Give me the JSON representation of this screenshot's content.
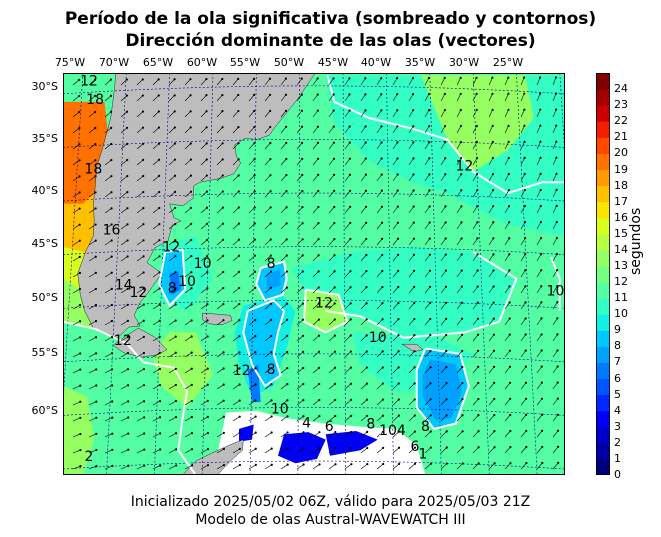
{
  "chart_data": {
    "type": "heatmap",
    "title": "Período de la ola significativa (sombreado y contornos)",
    "subtitle": "Dirección dominante de las olas (vectores)",
    "x_ticks": [
      "75°W",
      "70°W",
      "65°W",
      "60°W",
      "55°W",
      "50°W",
      "45°W",
      "40°W",
      "35°W",
      "30°W",
      "25°W"
    ],
    "y_ticks": [
      "30°S",
      "35°S",
      "40°S",
      "45°S",
      "50°S",
      "55°S",
      "60°S"
    ],
    "colorbar": {
      "label": "segundos",
      "min": 0,
      "max": 25,
      "ticks": [
        "0",
        "1",
        "2",
        "3",
        "4",
        "5",
        "6",
        "7",
        "8",
        "9",
        "10",
        "11",
        "12",
        "13",
        "14",
        "15",
        "16",
        "17",
        "18",
        "19",
        "20",
        "21",
        "22",
        "23",
        "24"
      ],
      "colors": [
        "#00007f",
        "#0000a4",
        "#0000cc",
        "#0000f5",
        "#0028ff",
        "#0054ff",
        "#0078ff",
        "#00a0ff",
        "#00c8ff",
        "#12f0e4",
        "#33ffc4",
        "#54ffa3",
        "#75ff82",
        "#96ff61",
        "#b7ff40",
        "#d8ff1f",
        "#fae500",
        "#ffc000",
        "#ff9a00",
        "#ff7200",
        "#ff4800",
        "#f51d00",
        "#cc0000",
        "#a40000",
        "#7f0000"
      ]
    },
    "contour_labels": [
      {
        "text": "12",
        "lon": -74.3,
        "lat": -29.6
      },
      {
        "text": "18",
        "lon": -73.6,
        "lat": -31.3
      },
      {
        "text": "18",
        "lon": -73.8,
        "lat": -37.8
      },
      {
        "text": "16",
        "lon": -71.7,
        "lat": -43.5
      },
      {
        "text": "14",
        "lon": -70.3,
        "lat": -48.6
      },
      {
        "text": "12",
        "lon": -68.6,
        "lat": -49.3
      },
      {
        "text": "12",
        "lon": -70.4,
        "lat": -53.8
      },
      {
        "text": "10",
        "lon": -63.0,
        "lat": -48.3
      },
      {
        "text": "8",
        "lon": -64.7,
        "lat": -48.9
      },
      {
        "text": "12",
        "lon": -64.8,
        "lat": -45.1
      },
      {
        "text": "10",
        "lon": -61.2,
        "lat": -46.6
      },
      {
        "text": "8",
        "lon": -53.3,
        "lat": -46.6
      },
      {
        "text": "12",
        "lon": -47.2,
        "lat": -50.3
      },
      {
        "text": "10",
        "lon": -41.0,
        "lat": -53.5
      },
      {
        "text": "12",
        "lon": -56.7,
        "lat": -56.6
      },
      {
        "text": "8",
        "lon": -53.3,
        "lat": -56.5
      },
      {
        "text": "10",
        "lon": -52.3,
        "lat": -60.2
      },
      {
        "text": "4",
        "lon": -49.2,
        "lat": -61.5
      },
      {
        "text": "6",
        "lon": -46.6,
        "lat": -61.8
      },
      {
        "text": "8",
        "lon": -41.8,
        "lat": -61.6
      },
      {
        "text": "104",
        "lon": -39.3,
        "lat": -62.2
      },
      {
        "text": "6",
        "lon": -36.7,
        "lat": -63.7
      },
      {
        "text": "1",
        "lon": -35.8,
        "lat": -64.4
      },
      {
        "text": "8",
        "lon": -35.5,
        "lat": -61.8
      },
      {
        "text": "12",
        "lon": -31.0,
        "lat": -37.5
      },
      {
        "text": "10",
        "lon": -20.5,
        "lat": -49.2
      },
      {
        "text": "2",
        "lon": -74.3,
        "lat": -64.6
      }
    ]
  },
  "footer": {
    "line1": "Inicializado 2025/05/02 06Z, válido para 2025/05/03 21Z",
    "line2": "Modelo de olas Austral-WAVEWATCH III"
  },
  "colors": {
    "land": "#bdbdbd",
    "contour": "#ffffff",
    "grid": "#000080",
    "missing": "#ffffff"
  }
}
